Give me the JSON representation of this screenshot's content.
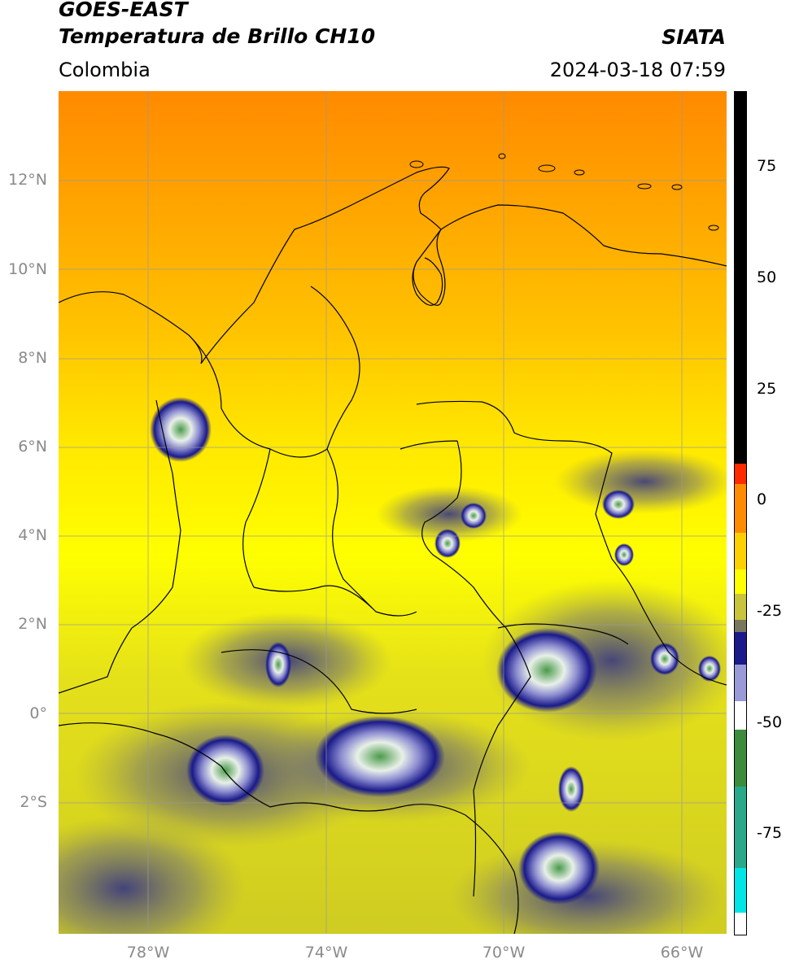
{
  "header": {
    "title_line1": "GOES-EAST",
    "title_line2": "Temperatura de Brillo CH10",
    "region": "Colombia",
    "brand": "SIATA",
    "timestamp": "2024-03-18 07:59"
  },
  "map": {
    "lat_ticks": [
      "12°N",
      "10°N",
      "8°N",
      "6°N",
      "4°N",
      "2°N",
      "0°",
      "2°S"
    ],
    "lon_ticks": [
      "78°W",
      "74°W",
      "70°W",
      "66°W"
    ],
    "extent": {
      "lon_min": -80,
      "lon_max": -65,
      "lat_min": -5,
      "lat_max": 14
    },
    "background_colors": {
      "north": "#ff8c00",
      "mid": "#ffff00",
      "south": "#d6d21e"
    },
    "cloud_colors": [
      "#1a1a8a",
      "#ffffff",
      "#3c8c3c"
    ]
  },
  "colorbar": {
    "ticks": [
      "75",
      "50",
      "25",
      "0",
      "-25",
      "-50",
      "-75"
    ],
    "range": [
      -95,
      90
    ],
    "colors": {
      "top": "#000000",
      "red": "#ff2a00",
      "orange": "#ff9a00",
      "yellow": "#ffff00",
      "olive": "#b8b83a",
      "navy": "#1a1a8a",
      "white": "#ffffff",
      "green": "#3c8c3c",
      "cyan": "#00e5e5"
    }
  }
}
